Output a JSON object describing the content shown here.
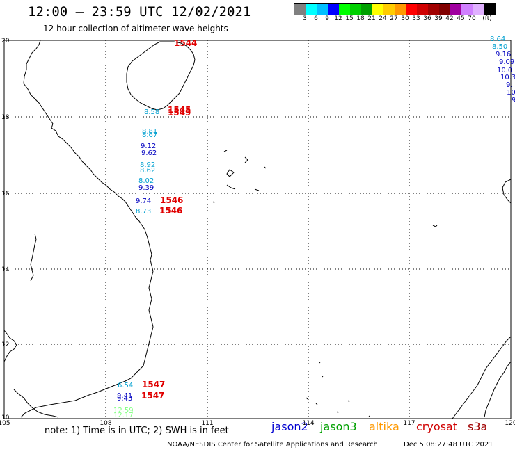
{
  "header": {
    "title": "12:00 – 23:59 UTC 12/02/2021",
    "subtitle": "12 hour collection of altimeter wave heights"
  },
  "colorbar": {
    "colors": [
      "#808080",
      "#00ffff",
      "#00bfff",
      "#0000ff",
      "#00ff00",
      "#00d000",
      "#00a000",
      "#ffff00",
      "#ffcc00",
      "#ff9900",
      "#ff0000",
      "#d00000",
      "#a00000",
      "#800000",
      "#a000a0",
      "#d080ff",
      "#e0b0ff",
      "#000000"
    ],
    "labels": [
      "3",
      "6",
      "9",
      "12",
      "15",
      "18",
      "21",
      "24",
      "27",
      "30",
      "33",
      "36",
      "39",
      "42",
      "45",
      "70",
      "(ft)"
    ]
  },
  "map": {
    "lat_labels": [
      "20",
      "18",
      "16",
      "14",
      "12",
      "10"
    ],
    "lon_labels": [
      "105",
      "108",
      "111",
      "114",
      "117",
      "120"
    ],
    "swh_readings": [
      {
        "text": "8.64",
        "color": "#00a0d0"
      },
      {
        "text": "8.50",
        "color": "#00a0d0"
      },
      {
        "text": "9.16",
        "color": "#0000c0"
      },
      {
        "text": "9.09",
        "color": "#0000c0"
      },
      {
        "text": "10.0",
        "color": "#0000c0"
      },
      {
        "text": "10.3",
        "color": "#0000c0"
      },
      {
        "text": "9.",
        "color": "#0000c0"
      },
      {
        "text": "10",
        "color": "#0000c0"
      },
      {
        "text": "9",
        "color": "#0000c0"
      },
      {
        "text": "8.58",
        "color": "#00a0d0"
      },
      {
        "text": "8.81",
        "color": "#00a0d0"
      },
      {
        "text": "8.67",
        "color": "#00a0d0"
      },
      {
        "text": "9.12",
        "color": "#0000c0"
      },
      {
        "text": "9.62",
        "color": "#0000c0"
      },
      {
        "text": "8.92",
        "color": "#00a0d0"
      },
      {
        "text": "8.62",
        "color": "#00a0d0"
      },
      {
        "text": "8.02",
        "color": "#00a0d0"
      },
      {
        "text": "9.39",
        "color": "#0000c0"
      },
      {
        "text": "9.74",
        "color": "#0000c0"
      },
      {
        "text": "8.73",
        "color": "#00a0d0"
      },
      {
        "text": "6.54",
        "color": "#00a0d0"
      },
      {
        "text": "9.41",
        "color": "#0000c0"
      },
      {
        "text": "9.43",
        "color": "#0000c0"
      },
      {
        "text": "12.59",
        "color": "#80ff80"
      },
      {
        "text": "12.17",
        "color": "#80ff80"
      }
    ],
    "pass_times": [
      "1544",
      "1545",
      "1549",
      "1546",
      "1546",
      "1547",
      "1547"
    ]
  },
  "footer": {
    "note": "note: 1) Time is in UTC; 2) SWH is in feet",
    "legend": [
      {
        "name": "jason2",
        "color": "#0000d0"
      },
      {
        "name": "jason3",
        "color": "#00a000"
      },
      {
        "name": "altika",
        "color": "#ff9900"
      },
      {
        "name": "cryosat",
        "color": "#d00000"
      },
      {
        "name": "s3a",
        "color": "#a00000"
      }
    ],
    "credit": "NOAA/NESDIS Center for Satellite Applications and Research",
    "generated": "Dec  5 08:27:48 UTC 2021"
  }
}
